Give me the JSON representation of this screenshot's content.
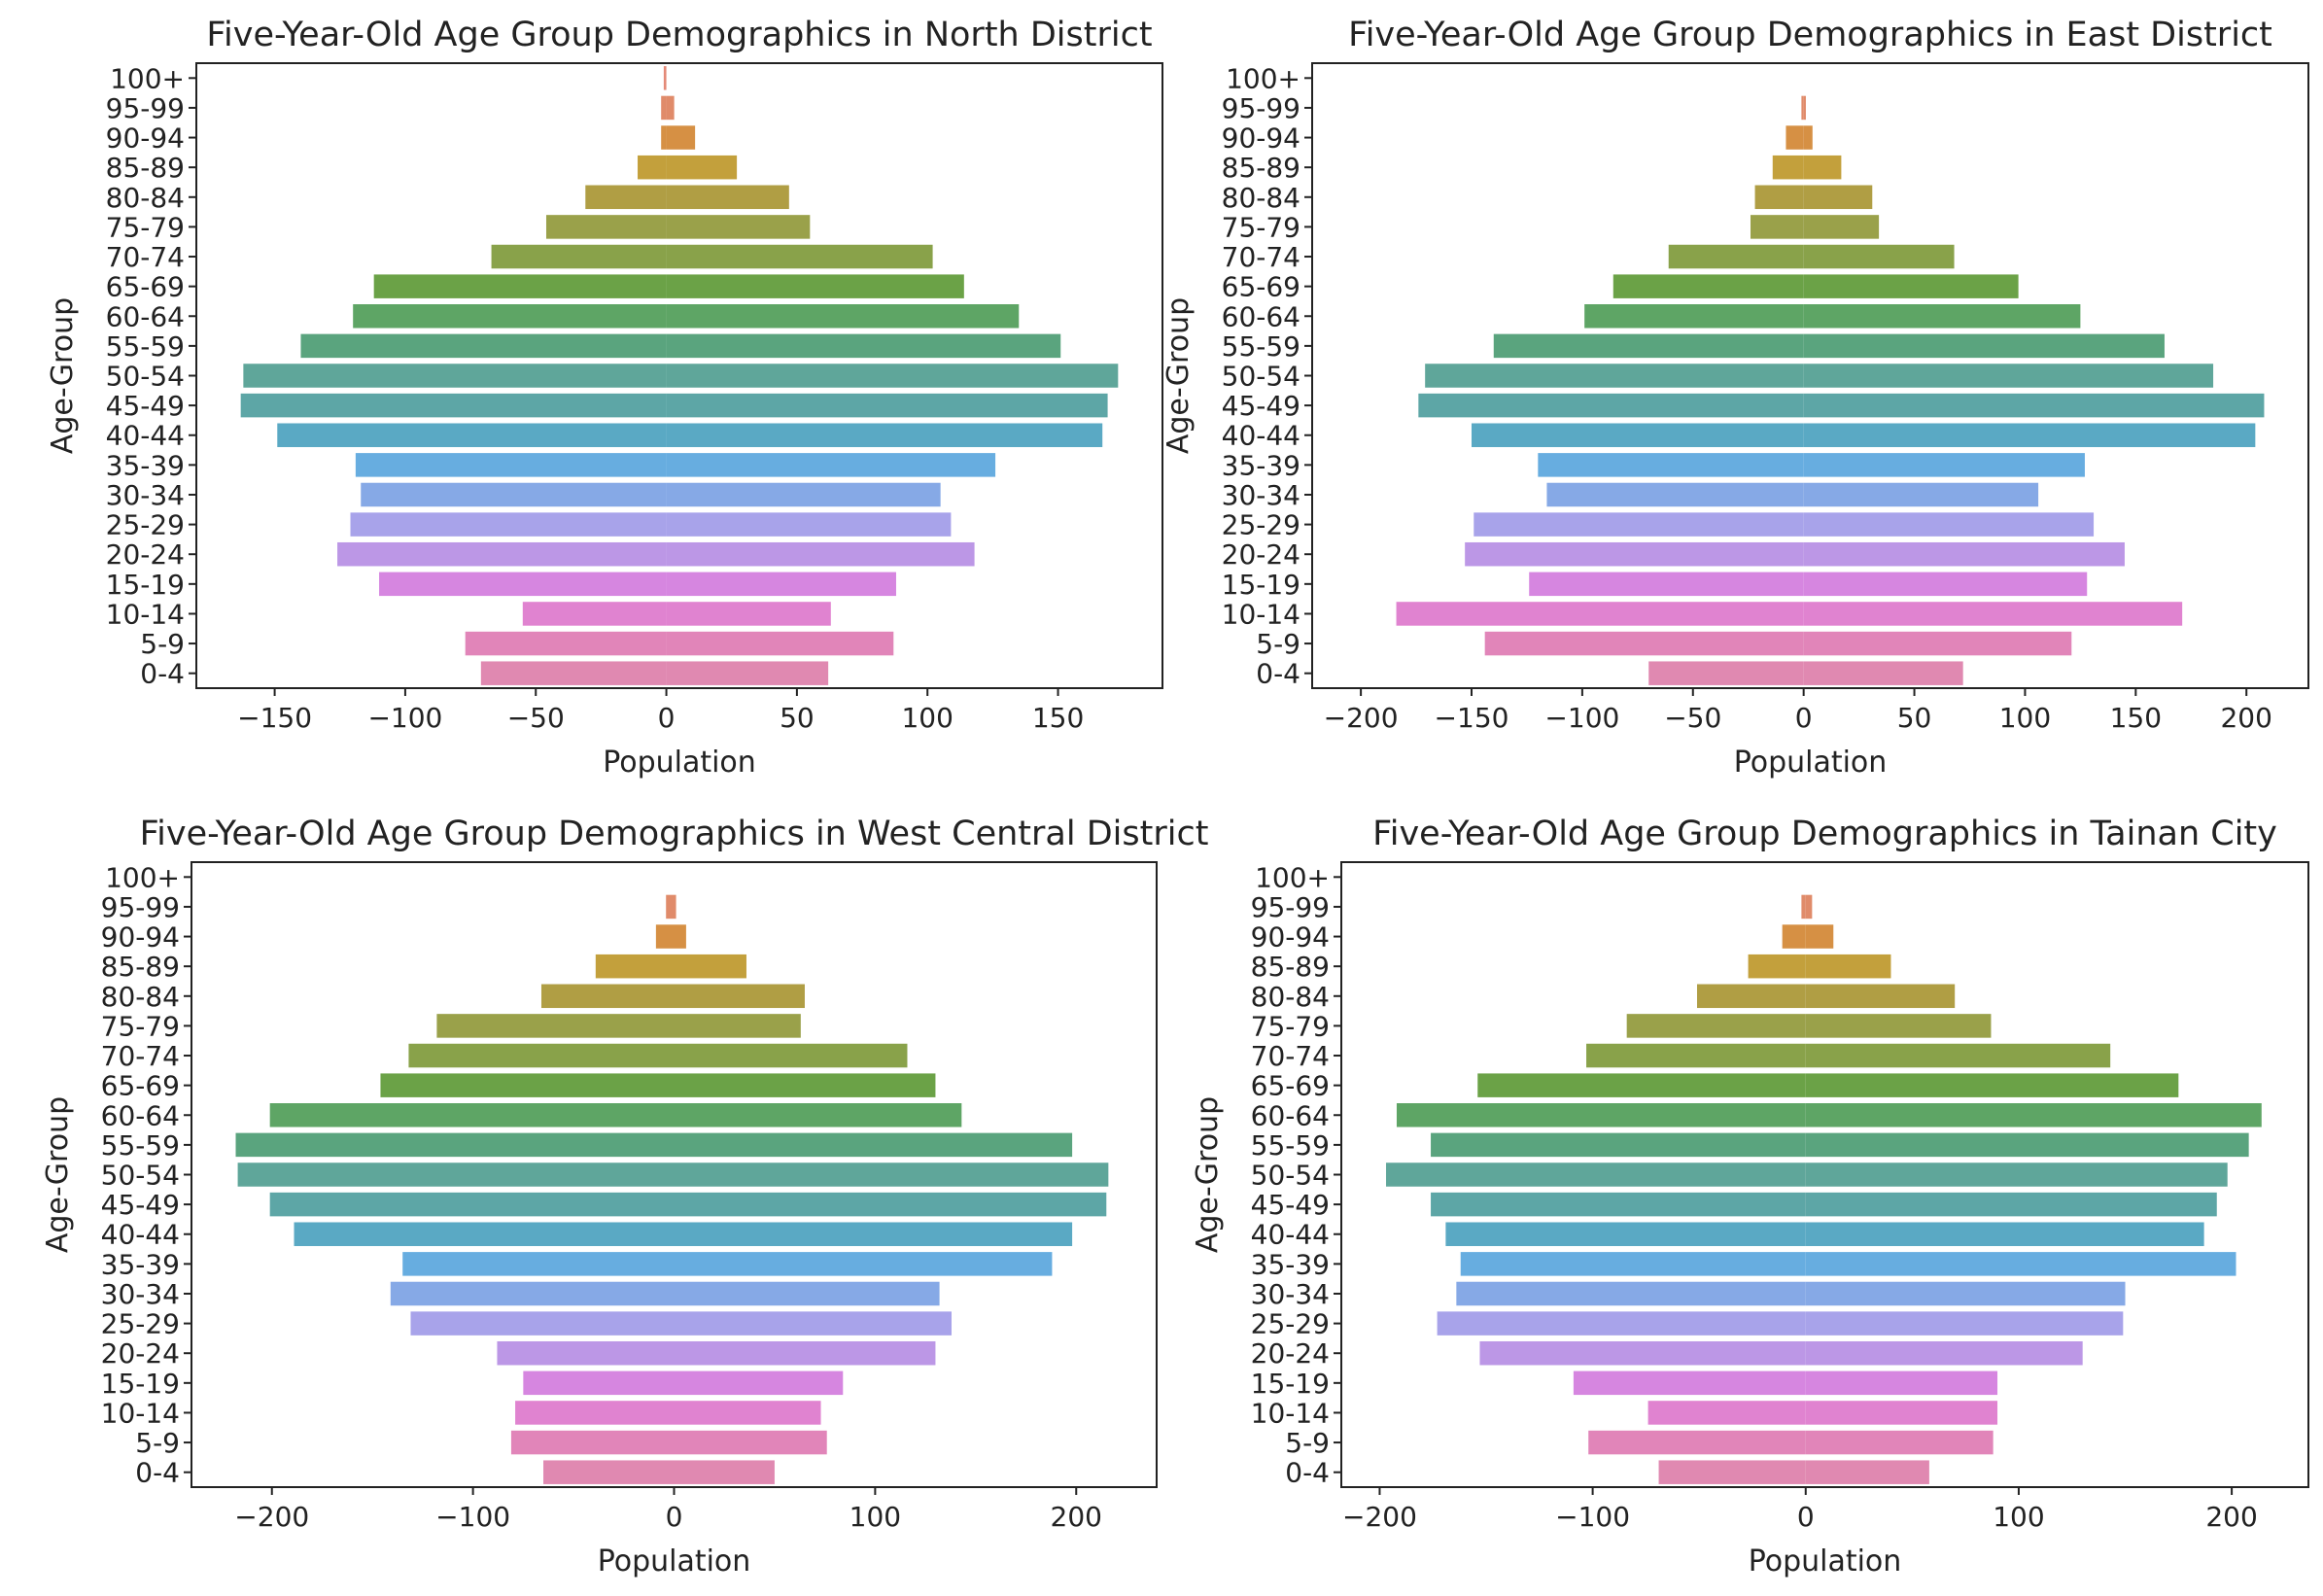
{
  "figure": {
    "age_groups": [
      "0-4",
      "5-9",
      "10-14",
      "15-19",
      "20-24",
      "25-29",
      "30-34",
      "35-39",
      "40-44",
      "45-49",
      "50-54",
      "55-59",
      "60-64",
      "65-69",
      "70-74",
      "75-79",
      "80-84",
      "85-89",
      "90-94",
      "95-99",
      "100+"
    ],
    "colors": [
      "#e089b1",
      "#e185b9",
      "#e083d0",
      "#d686e0",
      "#bc97e6",
      "#a8a3ea",
      "#86a9e6",
      "#67ade0",
      "#5aa9c4",
      "#5da6a6",
      "#5fa69a",
      "#5aa47e",
      "#5ea565",
      "#6ba247",
      "#89a24a",
      "#9aa14a",
      "#b09e44",
      "#c3a03c",
      "#d69044",
      "#e08b6a",
      "#e48a78"
    ]
  },
  "chart_data": [
    {
      "type": "bar",
      "orientation": "horizontal",
      "title": "Five-Year-Old Age Group Demographics in North District",
      "xlabel": "Population",
      "ylabel": "Age-Group",
      "xlim": [
        -180,
        190
      ],
      "xticks": [
        -150,
        -100,
        -50,
        0,
        50,
        100,
        150
      ],
      "xtick_labels": [
        "−150",
        "−100",
        "−50",
        "0",
        "50",
        "100",
        "150"
      ],
      "categories": [
        "0-4",
        "5-9",
        "10-14",
        "15-19",
        "20-24",
        "25-29",
        "30-34",
        "35-39",
        "40-44",
        "45-49",
        "50-54",
        "55-59",
        "60-64",
        "65-69",
        "70-74",
        "75-79",
        "80-84",
        "85-89",
        "90-94",
        "95-99",
        "100+"
      ],
      "series": [
        {
          "values": [
            -71,
            -77,
            -55,
            -110,
            -126,
            -121,
            -117,
            -119,
            -149,
            -163,
            -162,
            -140,
            -120,
            -112,
            -67,
            -46,
            -31,
            -11,
            -2,
            -2,
            -1
          ]
        },
        {
          "values": [
            62,
            87,
            63,
            88,
            118,
            109,
            105,
            126,
            167,
            169,
            173,
            151,
            135,
            114,
            102,
            55,
            47,
            27,
            11,
            3,
            0
          ]
        }
      ]
    },
    {
      "type": "bar",
      "orientation": "horizontal",
      "title": "Five-Year-Old Age Group Demographics in East District",
      "xlabel": "Population",
      "ylabel": "Age-Group",
      "xlim": [
        -222,
        228
      ],
      "xticks": [
        -200,
        -150,
        -100,
        -50,
        0,
        50,
        100,
        150,
        200
      ],
      "xtick_labels": [
        "−200",
        "−150",
        "−100",
        "−50",
        "0",
        "50",
        "100",
        "150",
        "200"
      ],
      "categories": [
        "0-4",
        "5-9",
        "10-14",
        "15-19",
        "20-24",
        "25-29",
        "30-34",
        "35-39",
        "40-44",
        "45-49",
        "50-54",
        "55-59",
        "60-64",
        "65-69",
        "70-74",
        "75-79",
        "80-84",
        "85-89",
        "90-94",
        "95-99",
        "100+"
      ],
      "series": [
        {
          "values": [
            -70,
            -144,
            -184,
            -124,
            -153,
            -149,
            -116,
            -120,
            -150,
            -174,
            -171,
            -140,
            -99,
            -86,
            -61,
            -24,
            -22,
            -14,
            -8,
            -1,
            0
          ]
        },
        {
          "values": [
            72,
            121,
            171,
            128,
            145,
            131,
            106,
            127,
            204,
            208,
            185,
            163,
            125,
            97,
            68,
            34,
            31,
            17,
            4,
            1,
            0
          ]
        }
      ]
    },
    {
      "type": "bar",
      "orientation": "horizontal",
      "title": "Five-Year-Old Age Group Demographics in West Central District",
      "xlabel": "Population",
      "ylabel": "Age-Group",
      "xlim": [
        -240,
        240
      ],
      "xticks": [
        -200,
        -100,
        0,
        100,
        200
      ],
      "xtick_labels": [
        "−200",
        "−100",
        "0",
        "100",
        "200"
      ],
      "categories": [
        "0-4",
        "5-9",
        "10-14",
        "15-19",
        "20-24",
        "25-29",
        "30-34",
        "35-39",
        "40-44",
        "45-49",
        "50-54",
        "55-59",
        "60-64",
        "65-69",
        "70-74",
        "75-79",
        "80-84",
        "85-89",
        "90-94",
        "95-99",
        "100+"
      ],
      "series": [
        {
          "values": [
            -65,
            -81,
            -79,
            -75,
            -88,
            -131,
            -141,
            -135,
            -189,
            -201,
            -217,
            -218,
            -201,
            -146,
            -132,
            -118,
            -66,
            -39,
            -9,
            -4,
            0
          ]
        },
        {
          "values": [
            50,
            76,
            73,
            84,
            130,
            138,
            132,
            188,
            198,
            215,
            216,
            198,
            143,
            130,
            116,
            63,
            65,
            36,
            6,
            1,
            0
          ]
        }
      ]
    },
    {
      "type": "bar",
      "orientation": "horizontal",
      "title": "Five-Year-Old Age Group Demographics in Tainan City",
      "xlabel": "Population",
      "ylabel": "Age-Group",
      "xlim": [
        -218,
        236
      ],
      "xticks": [
        -200,
        -100,
        0,
        100,
        200
      ],
      "xtick_labels": [
        "−200",
        "−100",
        "0",
        "100",
        "200"
      ],
      "categories": [
        "0-4",
        "5-9",
        "10-14",
        "15-19",
        "20-24",
        "25-29",
        "30-34",
        "35-39",
        "40-44",
        "45-49",
        "50-54",
        "55-59",
        "60-64",
        "65-69",
        "70-74",
        "75-79",
        "80-84",
        "85-89",
        "90-94",
        "95-99",
        "100+"
      ],
      "series": [
        {
          "values": [
            -69,
            -102,
            -74,
            -109,
            -153,
            -173,
            -164,
            -162,
            -169,
            -176,
            -197,
            -176,
            -192,
            -154,
            -103,
            -84,
            -51,
            -27,
            -11,
            -2,
            0
          ]
        },
        {
          "values": [
            58,
            88,
            90,
            90,
            130,
            149,
            150,
            202,
            187,
            193,
            198,
            208,
            214,
            175,
            143,
            87,
            70,
            40,
            13,
            3,
            0
          ]
        }
      ]
    }
  ]
}
